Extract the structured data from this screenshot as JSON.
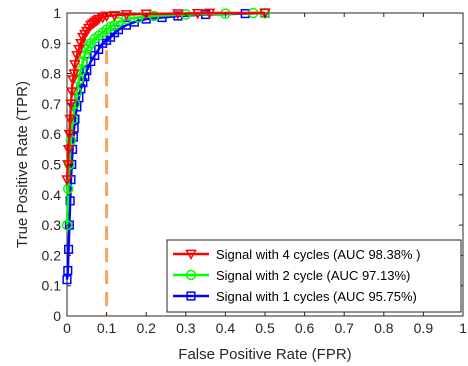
{
  "chart_data": {
    "type": "line",
    "title": "",
    "xlabel": "False Positive Rate (FPR)",
    "ylabel": "True Positive Rate (TPR)",
    "xlim": [
      0,
      1
    ],
    "ylim": [
      0,
      1
    ],
    "xticks": [
      "0",
      "0.1",
      "0.2",
      "0.3",
      "0.4",
      "0.5",
      "0.6",
      "0.7",
      "0.8",
      "0.9",
      "1"
    ],
    "yticks": [
      "0",
      "0.1",
      "0.2",
      "0.3",
      "0.4",
      "0.5",
      "0.6",
      "0.7",
      "0.8",
      "0.9",
      "1"
    ],
    "grid": false,
    "legend_position": "bottom-right",
    "threshold_line": {
      "x": 0.1,
      "color": "#F4A460",
      "style": "dashed"
    },
    "series": [
      {
        "name": "Signal with 4 cycles (AUC 98.38% )",
        "color": "#FF0000",
        "marker": "triangle-down",
        "x": [
          0,
          0.002,
          0.004,
          0.006,
          0.008,
          0.01,
          0.012,
          0.015,
          0.018,
          0.02,
          0.025,
          0.03,
          0.035,
          0.04,
          0.045,
          0.05,
          0.055,
          0.06,
          0.065,
          0.07,
          0.075,
          0.08,
          0.09,
          0.1,
          0.12,
          0.15,
          0.2,
          0.28,
          0.33,
          0.36,
          0.5
        ],
        "y": [
          0.45,
          0.5,
          0.55,
          0.6,
          0.65,
          0.7,
          0.74,
          0.78,
          0.8,
          0.83,
          0.86,
          0.88,
          0.9,
          0.92,
          0.93,
          0.94,
          0.95,
          0.96,
          0.965,
          0.97,
          0.975,
          0.98,
          0.985,
          0.99,
          0.992,
          0.995,
          0.997,
          0.998,
          0.999,
          1,
          1
        ]
      },
      {
        "name": "Signal with 2 cycle (AUC 97.13%)",
        "color": "#00FF00",
        "marker": "circle",
        "x": [
          0,
          0.003,
          0.006,
          0.01,
          0.015,
          0.02,
          0.025,
          0.03,
          0.035,
          0.04,
          0.045,
          0.05,
          0.055,
          0.06,
          0.07,
          0.08,
          0.09,
          0.1,
          0.11,
          0.12,
          0.13,
          0.15,
          0.18,
          0.22,
          0.3,
          0.4,
          0.47,
          0.5
        ],
        "y": [
          0.3,
          0.42,
          0.5,
          0.58,
          0.65,
          0.7,
          0.74,
          0.78,
          0.81,
          0.84,
          0.86,
          0.88,
          0.89,
          0.9,
          0.915,
          0.925,
          0.935,
          0.945,
          0.955,
          0.96,
          0.97,
          0.98,
          0.985,
          0.99,
          0.995,
          0.998,
          1,
          1
        ]
      },
      {
        "name": "Signal with 1 cycles (AUC 95.75%)",
        "color": "#0000FF",
        "marker": "square",
        "x": [
          0,
          0.002,
          0.004,
          0.006,
          0.008,
          0.01,
          0.012,
          0.014,
          0.016,
          0.018,
          0.02,
          0.025,
          0.03,
          0.035,
          0.04,
          0.045,
          0.05,
          0.06,
          0.07,
          0.08,
          0.09,
          0.1,
          0.11,
          0.12,
          0.13,
          0.15,
          0.17,
          0.2,
          0.24,
          0.28,
          0.35,
          0.45,
          0.5
        ],
        "y": [
          0.12,
          0.15,
          0.22,
          0.3,
          0.38,
          0.45,
          0.5,
          0.55,
          0.59,
          0.62,
          0.65,
          0.69,
          0.72,
          0.75,
          0.77,
          0.79,
          0.81,
          0.84,
          0.86,
          0.88,
          0.9,
          0.91,
          0.92,
          0.935,
          0.945,
          0.96,
          0.97,
          0.98,
          0.985,
          0.99,
          0.995,
          0.998,
          1
        ]
      }
    ]
  }
}
